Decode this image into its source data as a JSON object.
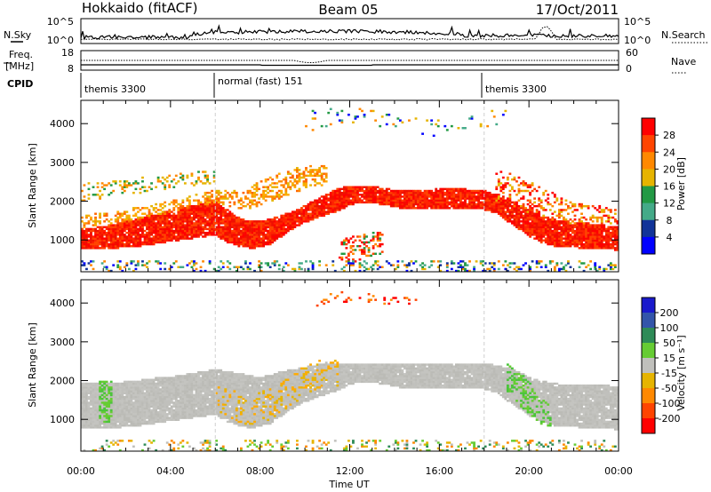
{
  "header": {
    "station": "Hokkaido (fitACF)",
    "beam": "Beam 05",
    "date": "17/Oct/2011"
  },
  "top_panels": {
    "nsky_label": "N.Sky",
    "nsky_ticks": [
      "10^5",
      "10^0"
    ],
    "nsearch_label": "N.Search",
    "nsearch_ticks": [
      "10^5",
      "10^0"
    ],
    "freq_label": "Freq.",
    "freq_unit": "[MHz]",
    "freq_ticks": [
      "18",
      "8"
    ],
    "nave_label": "Nave",
    "nave_ticks": [
      "60",
      "0"
    ],
    "cpid_label": "CPID",
    "cpid_segments": [
      {
        "label": "themis 3300",
        "start_h": 0,
        "end_h": 6
      },
      {
        "label": "normal (fast) 151",
        "start_h": 6,
        "end_h": 18
      },
      {
        "label": "themis 3300",
        "start_h": 18,
        "end_h": 24
      }
    ]
  },
  "chart_data": [
    {
      "type": "heatmap",
      "name": "power",
      "ylabel": "Slant Range [km]",
      "yticks": [
        1000,
        2000,
        3000,
        4000
      ],
      "ylim": [
        180,
        4600
      ],
      "xlim_hours": [
        0,
        24
      ],
      "colorbar_label": "Power [dB]",
      "colorbar_ticks": [
        "28",
        "24",
        "20",
        "16",
        "12",
        "8",
        "4"
      ],
      "colorbar_colors": [
        "#ff0000",
        "#ff4400",
        "#ff8800",
        "#e6b400",
        "#229944",
        "#44aa88",
        "#113399",
        "#0000ff"
      ],
      "bands": [
        {
          "t": [
            0,
            0.5,
            1,
            1.5,
            2,
            2.5,
            3,
            3.5,
            4,
            4.5,
            5,
            5.5,
            6,
            6.5,
            7,
            7.5,
            8,
            8.5,
            9,
            9.5,
            10,
            10.5,
            11,
            11.5,
            12,
            12.5,
            13,
            13.5,
            14,
            14.5,
            15,
            15.5,
            16,
            16.5,
            17,
            17.5,
            18,
            18.5,
            19,
            19.5,
            20,
            20.5,
            21,
            21.5,
            22,
            22.5,
            23,
            23.5,
            24
          ],
          "lo": [
            750,
            760,
            770,
            780,
            800,
            830,
            870,
            910,
            960,
            1000,
            1040,
            1080,
            1120,
            950,
            850,
            780,
            800,
            900,
            1100,
            1300,
            1450,
            1550,
            1650,
            1750,
            1900,
            1950,
            1950,
            1900,
            1850,
            1800,
            1780,
            1780,
            1790,
            1790,
            1790,
            1780,
            1780,
            1700,
            1500,
            1300,
            1100,
            950,
            850,
            820,
            800,
            780,
            760,
            750,
            740
          ],
          "hi": [
            1300,
            1320,
            1360,
            1420,
            1480,
            1550,
            1620,
            1680,
            1760,
            1850,
            1900,
            1950,
            2000,
            1800,
            1600,
            1500,
            1500,
            1550,
            1650,
            1750,
            1900,
            2050,
            2200,
            2350,
            2400,
            2400,
            2400,
            2350,
            2300,
            2300,
            2300,
            2300,
            2330,
            2350,
            2330,
            2300,
            2280,
            2200,
            2100,
            1900,
            1800,
            1650,
            1550,
            1500,
            1450,
            1450,
            1400,
            1380,
            1350
          ],
          "colors": [
            "#ff0000",
            "#ff2200",
            "#ee1100",
            "#ff4400"
          ],
          "density": 0.95
        },
        {
          "t": [
            0,
            1,
            2,
            3,
            4,
            5,
            6,
            6.5,
            7,
            7.5,
            8,
            8.5,
            9,
            9.5,
            10,
            10.5,
            11
          ],
          "lo": [
            1300,
            1350,
            1450,
            1580,
            1700,
            1850,
            1950,
            1900,
            1800,
            1800,
            1900,
            2000,
            2100,
            2200,
            2300,
            2400,
            2400
          ],
          "hi": [
            1650,
            1700,
            1800,
            1900,
            2000,
            2150,
            2300,
            2300,
            2300,
            2400,
            2500,
            2650,
            2750,
            2850,
            2900,
            2950,
            2950
          ],
          "colors": [
            "#ff8800",
            "#ffaa00",
            "#e6b400",
            "#ff6600"
          ],
          "density": 0.45
        },
        {
          "t": [
            0,
            1,
            2,
            3,
            4,
            5,
            6
          ],
          "lo": [
            2000,
            2080,
            2150,
            2250,
            2320,
            2400,
            2450
          ],
          "hi": [
            2450,
            2500,
            2550,
            2650,
            2700,
            2750,
            2800
          ],
          "colors": [
            "#e6b400",
            "#ff8800",
            "#229944"
          ],
          "density": 0.25
        },
        {
          "t": [
            18.5,
            19,
            19.5,
            20,
            20.5,
            21,
            21.5,
            22,
            23,
            24
          ],
          "lo": [
            2000,
            1900,
            1800,
            1700,
            1600,
            1500,
            1450,
            1400,
            1400,
            1400
          ],
          "hi": [
            2800,
            2750,
            2650,
            2550,
            2400,
            2250,
            2100,
            2000,
            1900,
            1800
          ],
          "colors": [
            "#ff4400",
            "#ff8800",
            "#e6b400",
            "#ff0000"
          ],
          "density": 0.35
        },
        {
          "t": [
            10,
            10.5,
            11,
            11.5,
            12,
            12.5,
            13,
            13.5,
            14,
            14.5,
            15,
            15.5,
            16,
            16.5,
            17,
            17.5,
            18,
            18.5,
            19
          ],
          "lo": [
            3800,
            3850,
            3900,
            3950,
            3950,
            3950,
            3950,
            3900,
            3850,
            3800,
            3750,
            3700,
            3650,
            3700,
            3750,
            3800,
            3850,
            3900,
            3950
          ],
          "hi": [
            4300,
            4350,
            4400,
            4450,
            4450,
            4450,
            4400,
            4350,
            4300,
            4250,
            4200,
            4150,
            4100,
            4150,
            4200,
            4250,
            4300,
            4350,
            4400
          ],
          "colors": [
            "#229944",
            "#e6b400",
            "#44aa88",
            "#0000ff",
            "#ff8800"
          ],
          "density": 0.08
        },
        {
          "t": [
            11.5,
            12,
            12.5,
            13,
            13.5
          ],
          "lo": [
            400,
            420,
            480,
            560,
            620
          ],
          "hi": [
            1050,
            1100,
            1150,
            1200,
            1250
          ],
          "colors": [
            "#ff0000",
            "#ff4400",
            "#ff8800",
            "#229944"
          ],
          "density": 0.35
        },
        {
          "t": [
            0,
            4,
            8,
            12,
            16,
            20,
            24
          ],
          "lo": [
            180,
            180,
            180,
            180,
            180,
            180,
            180
          ],
          "hi": [
            480,
            480,
            480,
            480,
            480,
            480,
            480
          ],
          "colors": [
            "#0000ff",
            "#229944",
            "#e6b400",
            "#ff8800",
            "#113399",
            "#44aa88"
          ],
          "density": 0.22
        }
      ]
    },
    {
      "type": "heatmap",
      "name": "velocity",
      "ylabel": "Slant Range [km]",
      "yticks": [
        1000,
        2000,
        3000,
        4000
      ],
      "ylim": [
        180,
        4600
      ],
      "xlim_hours": [
        0,
        24
      ],
      "xlabel": "Time UT",
      "xticks": [
        "00:00",
        "04:00",
        "08:00",
        "12:00",
        "16:00",
        "20:00",
        "00:00"
      ],
      "colorbar_label": "Velocity [m s⁻¹]",
      "colorbar_ticks": [
        "200",
        "100",
        "50",
        "15",
        "-15",
        "-50",
        "-100",
        "-200"
      ],
      "colorbar_colors": [
        "#1a1acc",
        "#3355aa",
        "#2e8b57",
        "#66cc33",
        "#c0c0bc",
        "#e6b400",
        "#ff8800",
        "#ff4400",
        "#ff0000"
      ],
      "bands": [
        {
          "t": [
            0,
            0.5,
            1,
            1.5,
            2,
            2.5,
            3,
            3.5,
            4,
            4.5,
            5,
            5.5,
            6,
            6.5,
            7,
            7.5,
            8,
            8.5,
            9,
            9.5,
            10,
            10.5,
            11,
            11.5,
            12,
            12.5,
            13,
            13.5,
            14,
            14.5,
            15,
            15.5,
            16,
            16.5,
            17,
            17.5,
            18,
            18.5,
            19,
            19.5,
            20,
            20.5,
            21,
            21.5,
            22,
            22.5,
            23,
            23.5,
            24
          ],
          "lo": [
            750,
            760,
            770,
            780,
            800,
            830,
            870,
            910,
            960,
            1000,
            1040,
            1080,
            1120,
            950,
            850,
            780,
            800,
            900,
            1100,
            1300,
            1450,
            1550,
            1650,
            1750,
            1900,
            1950,
            1950,
            1900,
            1850,
            1800,
            1780,
            1780,
            1790,
            1790,
            1790,
            1780,
            1780,
            1700,
            1500,
            1300,
            1100,
            950,
            850,
            820,
            800,
            780,
            760,
            750,
            740
          ],
          "hi": [
            1950,
            1950,
            1950,
            1950,
            1980,
            2000,
            2050,
            2080,
            2100,
            2150,
            2200,
            2250,
            2300,
            2250,
            2200,
            2150,
            2100,
            2150,
            2250,
            2300,
            2350,
            2400,
            2450,
            2450,
            2450,
            2450,
            2450,
            2450,
            2450,
            2450,
            2450,
            2450,
            2450,
            2450,
            2450,
            2450,
            2450,
            2400,
            2350,
            2250,
            2100,
            2000,
            1950,
            1900,
            1900,
            1900,
            1900,
            1880,
            1850
          ],
          "colors": [
            "#c0c0bc",
            "#c4c4c0",
            "#bbbbb6"
          ],
          "density": 0.97
        },
        {
          "t": [
            6,
            6.5,
            7,
            7.5,
            8,
            8.5,
            9,
            9.5,
            10,
            10.5,
            11,
            11.5
          ],
          "lo": [
            1200,
            1100,
            950,
            850,
            900,
            1000,
            1200,
            1400,
            1600,
            1700,
            1800,
            1850
          ],
          "hi": [
            1900,
            1800,
            1700,
            1650,
            1700,
            1800,
            2000,
            2200,
            2400,
            2500,
            2550,
            2550
          ],
          "colors": [
            "#e6b400",
            "#ffaa00",
            "#c0c0bc"
          ],
          "density": 0.3
        },
        {
          "t": [
            0.8,
            1,
            1.2,
            1.4
          ],
          "lo": [
            900,
            900,
            900,
            900
          ],
          "hi": [
            2000,
            2000,
            2000,
            2000
          ],
          "colors": [
            "#66cc33",
            "#4ac43a"
          ],
          "density": 0.5
        },
        {
          "t": [
            19,
            19.5,
            20,
            20.5,
            21
          ],
          "lo": [
            1700,
            1400,
            1100,
            900,
            800
          ],
          "hi": [
            2500,
            2300,
            2000,
            1600,
            1300
          ],
          "colors": [
            "#66cc33",
            "#4ac43a"
          ],
          "density": 0.35
        },
        {
          "t": [
            10.5,
            11,
            11.5,
            12,
            12.5,
            13,
            13.5,
            14,
            14.5,
            15
          ],
          "lo": [
            3900,
            3950,
            4000,
            4050,
            4050,
            4000,
            3950,
            3950,
            3950,
            3950
          ],
          "hi": [
            4200,
            4250,
            4300,
            4300,
            4300,
            4250,
            4200,
            4150,
            4150,
            4150
          ],
          "colors": [
            "#ff0000",
            "#ff4400",
            "#ff8800"
          ],
          "density": 0.15
        },
        {
          "t": [
            0,
            4,
            8,
            12,
            16,
            20,
            24
          ],
          "lo": [
            180,
            180,
            180,
            180,
            180,
            180,
            180
          ],
          "hi": [
            480,
            480,
            480,
            480,
            480,
            480,
            480
          ],
          "colors": [
            "#66cc33",
            "#e6b400",
            "#c0c0bc",
            "#2e8b57",
            "#ff8800"
          ],
          "density": 0.18
        }
      ]
    }
  ]
}
